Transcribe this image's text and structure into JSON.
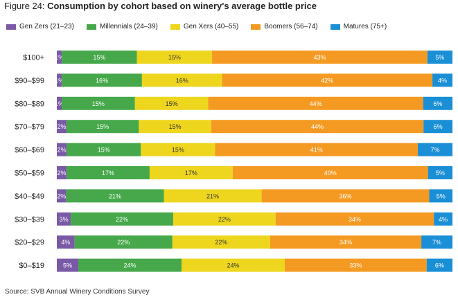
{
  "figure": {
    "label": "Figure 24: ",
    "title": "Consumption by cohort based on winery's average bottle price",
    "source": "Source: SVB Annual Winery Conditions Survey"
  },
  "chart_data": {
    "type": "bar",
    "orientation": "horizontal",
    "stacked": true,
    "title": "Consumption by cohort based on winery's average bottle price",
    "xlabel": "",
    "ylabel": "",
    "xlim": [
      0,
      100
    ],
    "legend_position": "top",
    "categories": [
      "$100+",
      "$90–$99",
      "$80–$89",
      "$70–$79",
      "$60–$69",
      "$50–$59",
      "$40–$49",
      "$30–$39",
      "$20–$29",
      "$0–$19"
    ],
    "series": [
      {
        "name": "Gen Zers (21–23)",
        "color": "#7a5aa6",
        "values": [
          1,
          1,
          1,
          2,
          2,
          2,
          2,
          3,
          4,
          5
        ]
      },
      {
        "name": "Millennials (24–39)",
        "color": "#46a84a",
        "values": [
          15,
          16,
          15,
          15,
          15,
          17,
          21,
          22,
          22,
          24
        ]
      },
      {
        "name": "Gen Xers (40–55)",
        "color": "#eed61e",
        "values": [
          15,
          16,
          15,
          15,
          15,
          17,
          21,
          22,
          22,
          24
        ]
      },
      {
        "name": "Boomers (56–74)",
        "color": "#f49a22",
        "values": [
          43,
          42,
          44,
          44,
          41,
          40,
          36,
          34,
          34,
          33
        ]
      },
      {
        "name": "Matures (75+)",
        "color": "#1a8fd6",
        "values": [
          5,
          4,
          6,
          6,
          7,
          5,
          5,
          4,
          7,
          6
        ]
      }
    ]
  }
}
